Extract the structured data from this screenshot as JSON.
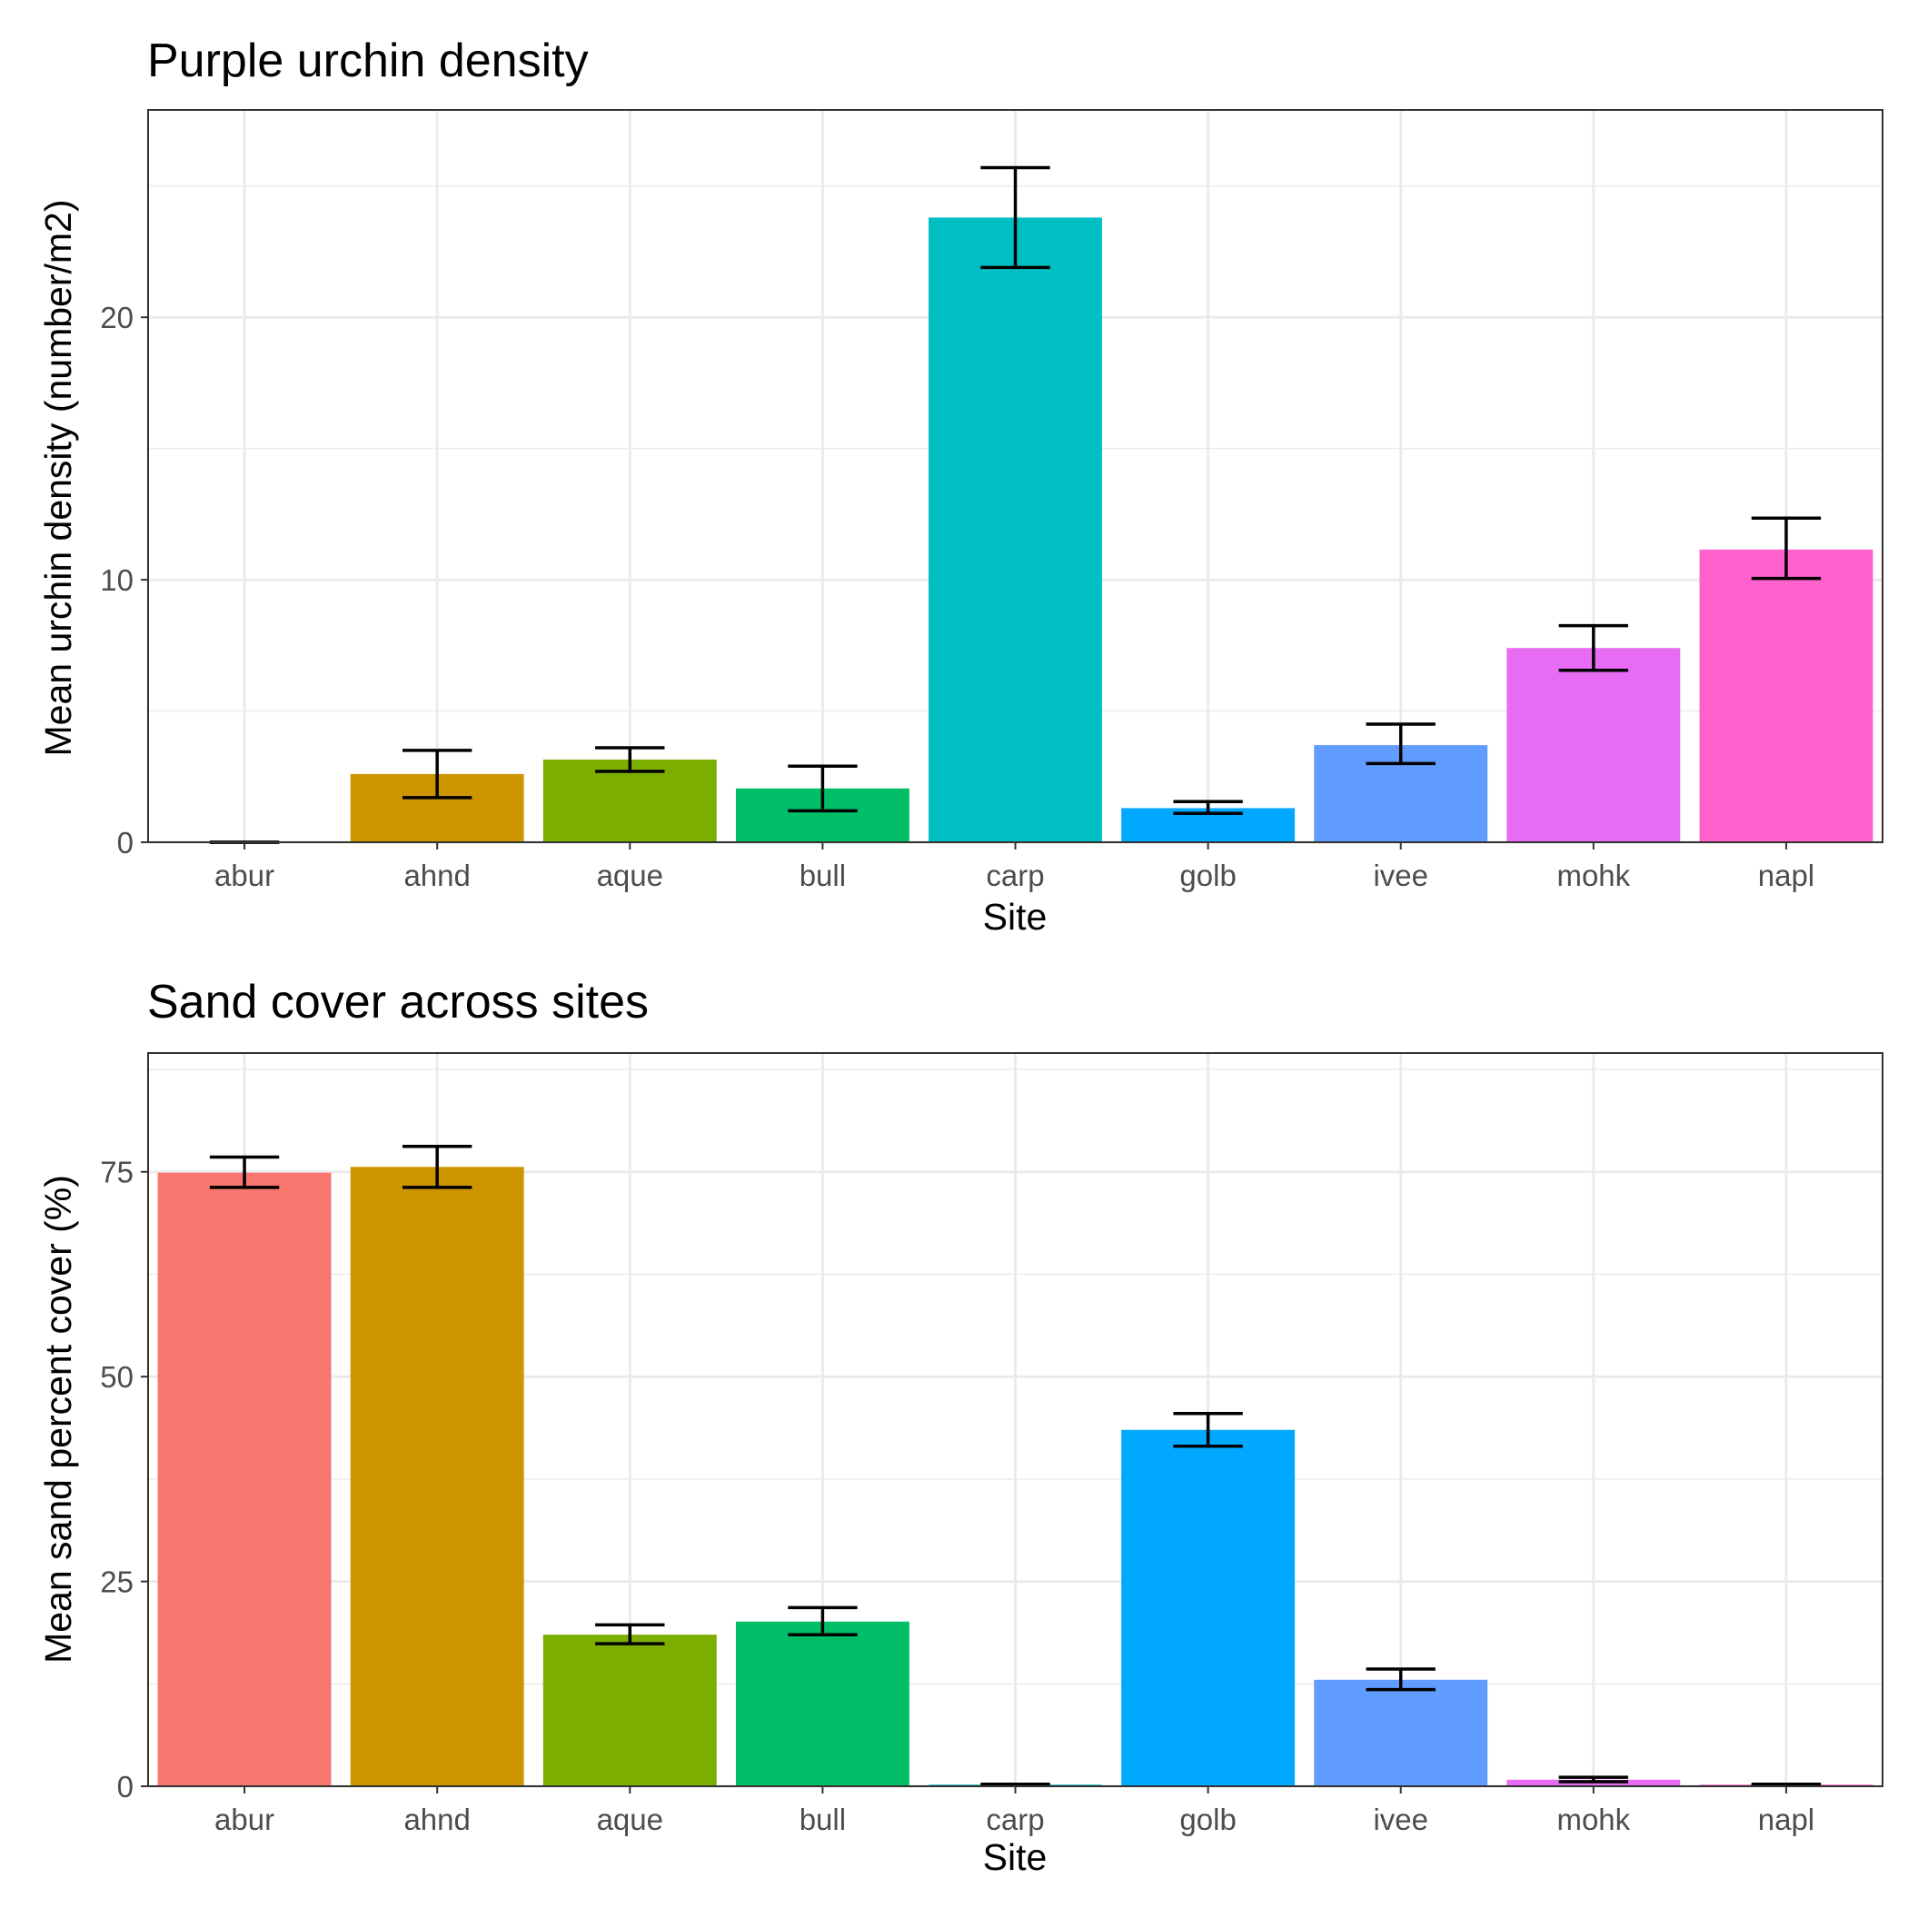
{
  "chart_data": [
    {
      "type": "bar",
      "title": "Purple urchin density",
      "xlabel": "Site",
      "ylabel": "Mean urchin density (number/m2)",
      "categories": [
        "abur",
        "ahnd",
        "aque",
        "bull",
        "carp",
        "golb",
        "ivee",
        "mohk",
        "napl"
      ],
      "values": [
        0.0,
        2.6,
        3.15,
        2.05,
        23.8,
        1.3,
        3.7,
        7.4,
        11.15
      ],
      "err_low": [
        0.0,
        1.7,
        2.7,
        1.2,
        21.9,
        1.1,
        3.0,
        6.55,
        10.05
      ],
      "err_high": [
        0.0,
        3.5,
        3.6,
        2.9,
        25.7,
        1.55,
        4.5,
        8.25,
        12.35
      ],
      "ylim": [
        0,
        27.9
      ],
      "yticks": [
        "0",
        "10",
        "20"
      ],
      "ytick_values": [
        0,
        10,
        20
      ],
      "yminor": [
        5,
        15,
        25
      ],
      "colors": [
        "#F8766D",
        "#CD9600",
        "#7CAE00",
        "#00BE67",
        "#00BFC4",
        "#00A9FF",
        "#619CFF",
        "#E76BF3",
        "#FF61CC"
      ],
      "grid": true,
      "legend": "none"
    },
    {
      "type": "bar",
      "title": "Sand cover across sites",
      "xlabel": "Site",
      "ylabel": "Mean sand percent cover (%)",
      "categories": [
        "abur",
        "ahnd",
        "aque",
        "bull",
        "carp",
        "golb",
        "ivee",
        "mohk",
        "napl"
      ],
      "values": [
        74.9,
        75.6,
        18.5,
        20.1,
        0.2,
        43.5,
        13.0,
        0.8,
        0.2
      ],
      "err_low": [
        73.1,
        73.1,
        17.4,
        18.5,
        0.15,
        41.5,
        11.8,
        0.55,
        0.15
      ],
      "err_high": [
        76.8,
        78.1,
        19.7,
        21.8,
        0.25,
        45.5,
        14.3,
        1.1,
        0.25
      ],
      "ylim": [
        0,
        89.5
      ],
      "yticks": [
        "0",
        "25",
        "50",
        "75"
      ],
      "ytick_values": [
        0,
        25,
        50,
        75
      ],
      "yminor": [
        12.5,
        37.5,
        62.5,
        87.5
      ],
      "colors": [
        "#F8766D",
        "#CD9600",
        "#7CAE00",
        "#00BE67",
        "#00BFC4",
        "#00A9FF",
        "#619CFF",
        "#E76BF3",
        "#FF61CC"
      ],
      "grid": true,
      "legend": "none"
    }
  ]
}
